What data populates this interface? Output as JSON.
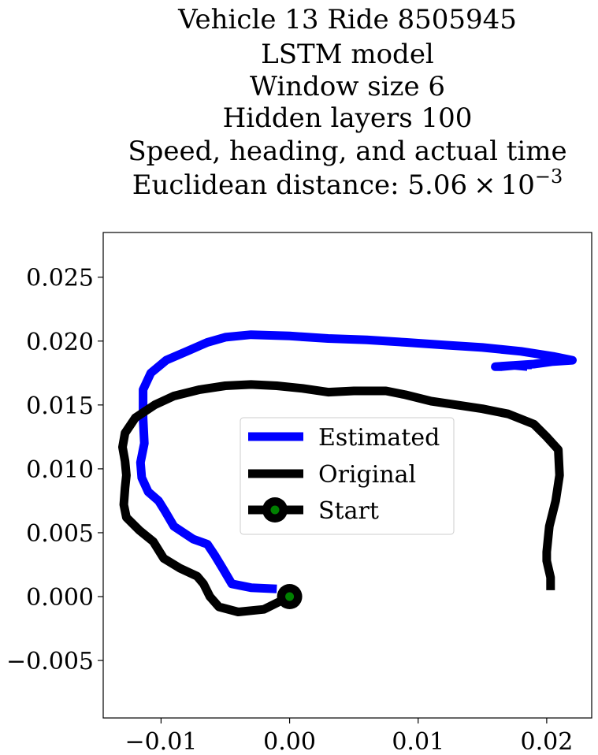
{
  "chart_data": {
    "type": "line",
    "title_lines": [
      "Vehicle 13 Ride 8505945",
      "LSTM model",
      "Window size 6",
      "Hidden layers 100",
      "Speed, heading, and actual time"
    ],
    "title_distance_prefix": "Euclidean distance: 5.06",
    "title_distance_times": "×",
    "title_distance_base": "10",
    "title_distance_exp": "−3",
    "xlabel": "",
    "ylabel": "",
    "xlim": [
      -0.0145,
      0.0235
    ],
    "ylim": [
      -0.0095,
      0.0285
    ],
    "x_ticks": [
      -0.01,
      0.0,
      0.01,
      0.02
    ],
    "x_tick_labels": [
      "−0.01",
      "0.00",
      "0.01",
      "0.02"
    ],
    "y_ticks": [
      -0.005,
      0.0,
      0.005,
      0.01,
      0.015,
      0.02,
      0.025
    ],
    "y_tick_labels": [
      "−0.005",
      "0.000",
      "0.005",
      "0.010",
      "0.015",
      "0.020",
      "0.025"
    ],
    "grid": false,
    "legend_placement": "center",
    "series": [
      {
        "name": "Estimated",
        "color": "#0000ff",
        "points": [
          [
            -0.001,
            0.0006
          ],
          [
            -0.003,
            0.0007
          ],
          [
            -0.0045,
            0.001
          ],
          [
            -0.0052,
            0.0022
          ],
          [
            -0.0058,
            0.0032
          ],
          [
            -0.0064,
            0.0041
          ],
          [
            -0.0075,
            0.0045
          ],
          [
            -0.009,
            0.0055
          ],
          [
            -0.0097,
            0.0067
          ],
          [
            -0.0102,
            0.0075
          ],
          [
            -0.011,
            0.0082
          ],
          [
            -0.0115,
            0.0093
          ],
          [
            -0.0116,
            0.0105
          ],
          [
            -0.0113,
            0.012
          ],
          [
            -0.0114,
            0.014
          ],
          [
            -0.0114,
            0.0162
          ],
          [
            -0.0108,
            0.0175
          ],
          [
            -0.0096,
            0.0185
          ],
          [
            -0.008,
            0.0192
          ],
          [
            -0.0064,
            0.0199
          ],
          [
            -0.005,
            0.0203
          ],
          [
            -0.003,
            0.0205
          ],
          [
            0.0,
            0.0204
          ],
          [
            0.003,
            0.0202
          ],
          [
            0.006,
            0.0201
          ],
          [
            0.009,
            0.0199
          ],
          [
            0.012,
            0.0197
          ],
          [
            0.015,
            0.0195
          ],
          [
            0.018,
            0.0192
          ],
          [
            0.0205,
            0.0188
          ],
          [
            0.022,
            0.0185
          ],
          [
            0.0205,
            0.0184
          ],
          [
            0.019,
            0.0182
          ],
          [
            0.0175,
            0.0181
          ],
          [
            0.0165,
            0.018
          ],
          [
            0.016,
            0.018
          ],
          [
            0.0175,
            0.0181
          ],
          [
            0.0185,
            0.018
          ],
          [
            0.0185,
            0.0178
          ]
        ]
      },
      {
        "name": "Original",
        "color": "#000000",
        "points": [
          [
            0.0,
            0.0
          ],
          [
            -0.002,
            -0.001
          ],
          [
            -0.004,
            -0.0012
          ],
          [
            -0.0055,
            -0.0008
          ],
          [
            -0.0062,
            0.0
          ],
          [
            -0.0067,
            0.001
          ],
          [
            -0.0072,
            0.0016
          ],
          [
            -0.0085,
            0.0022
          ],
          [
            -0.0098,
            0.003
          ],
          [
            -0.0106,
            0.0043
          ],
          [
            -0.0117,
            0.0052
          ],
          [
            -0.0127,
            0.0062
          ],
          [
            -0.0129,
            0.0072
          ],
          [
            -0.0128,
            0.0085
          ],
          [
            -0.0127,
            0.0095
          ],
          [
            -0.0128,
            0.0106
          ],
          [
            -0.013,
            0.0117
          ],
          [
            -0.0128,
            0.0128
          ],
          [
            -0.012,
            0.014
          ],
          [
            -0.0105,
            0.015
          ],
          [
            -0.009,
            0.0157
          ],
          [
            -0.007,
            0.0162
          ],
          [
            -0.005,
            0.0165
          ],
          [
            -0.003,
            0.0166
          ],
          [
            -0.001,
            0.0165
          ],
          [
            0.001,
            0.0163
          ],
          [
            0.003,
            0.016
          ],
          [
            0.005,
            0.0161
          ],
          [
            0.0075,
            0.0161
          ],
          [
            0.009,
            0.0158
          ],
          [
            0.011,
            0.0153
          ],
          [
            0.013,
            0.015
          ],
          [
            0.015,
            0.0147
          ],
          [
            0.017,
            0.0143
          ],
          [
            0.019,
            0.0135
          ],
          [
            0.02,
            0.0125
          ],
          [
            0.0209,
            0.0115
          ],
          [
            0.021,
            0.0095
          ],
          [
            0.0207,
            0.0075
          ],
          [
            0.0202,
            0.0055
          ],
          [
            0.02,
            0.0035
          ],
          [
            0.02,
            0.0028
          ],
          [
            0.0203,
            0.0015
          ],
          [
            0.0203,
            0.0005
          ]
        ]
      }
    ],
    "markers": [
      {
        "name": "Start",
        "x": 0.0,
        "y": 0.0,
        "line_color": "#000000",
        "face_color": "#008000",
        "edge_color": "#000000"
      }
    ]
  }
}
